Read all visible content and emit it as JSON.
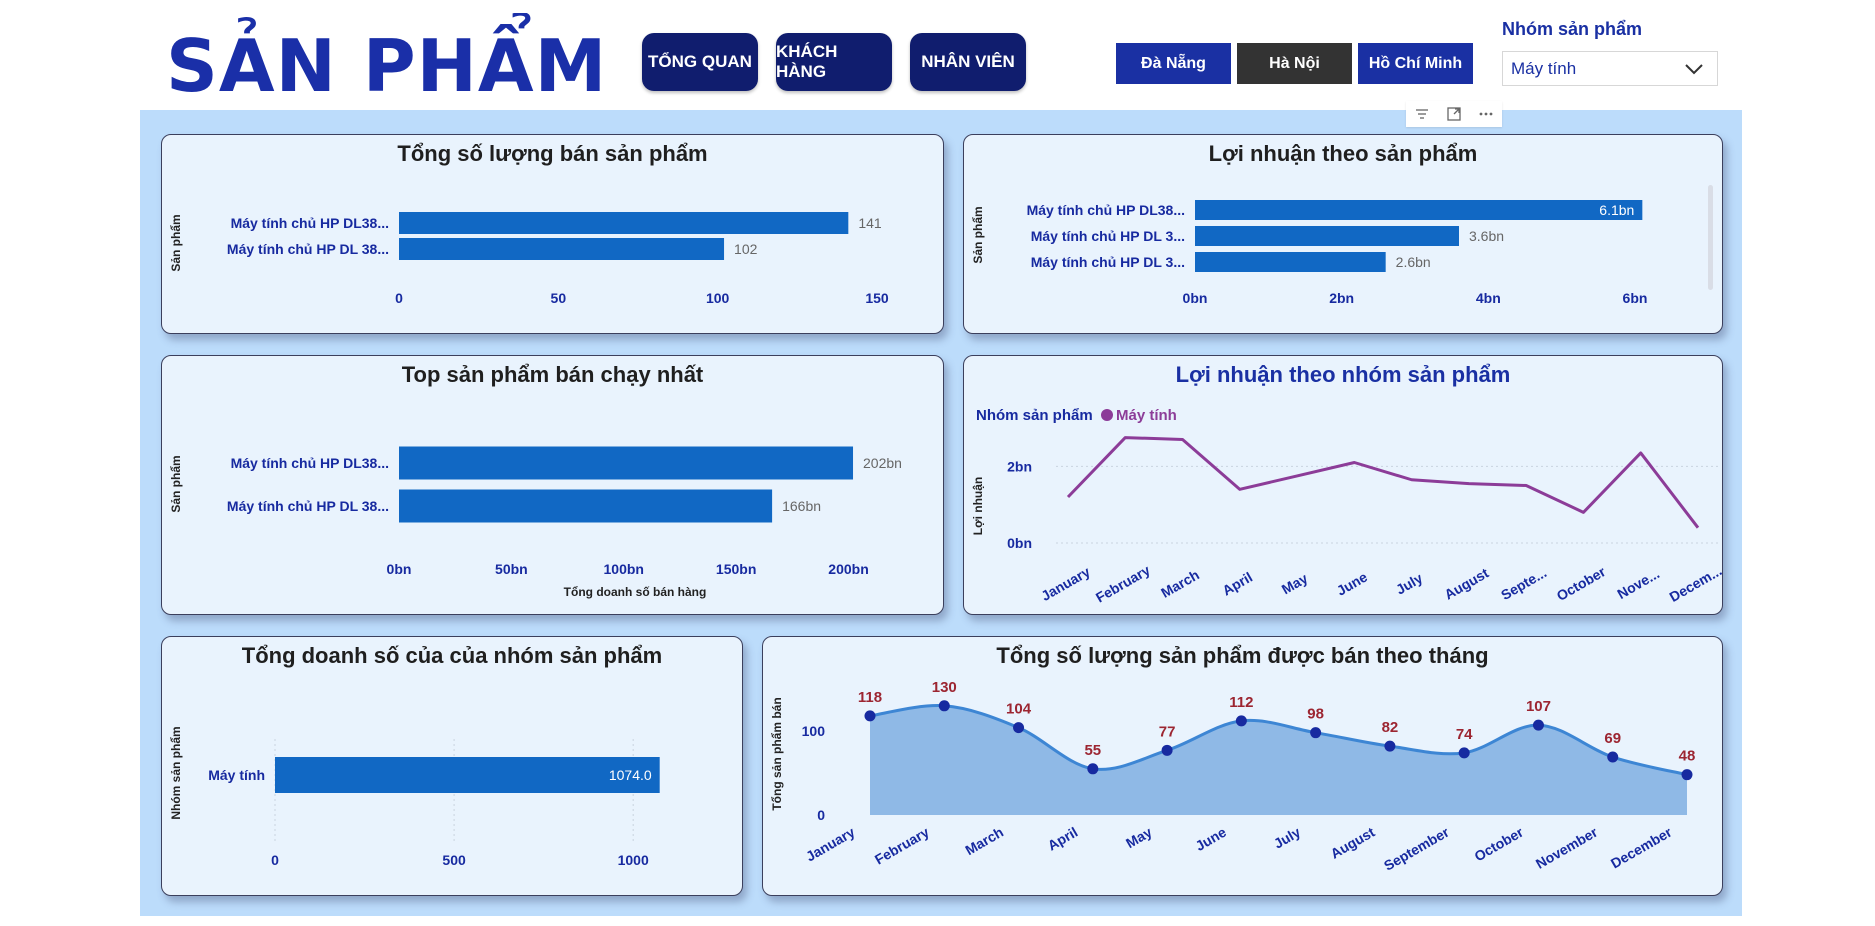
{
  "header": {
    "title": "SẢN PHẨM",
    "nav": [
      "TỔNG QUAN",
      "KHÁCH HÀNG",
      "NHÂN VIÊN"
    ],
    "cities": [
      "Đà Nẵng",
      "Hà Nội",
      "Hồ Chí Minh"
    ],
    "active_city": "Hà Nội",
    "slicer_label": "Nhóm sản phẩm",
    "slicer_value": "Máy tính"
  },
  "colors": {
    "bar": "#1168c4",
    "line": "#8c3c98",
    "area": "#8fb9e6",
    "area_line": "#3d86d4",
    "dot": "#172aa0",
    "point_label": "#9c2531",
    "nav_bg": "#101d6e",
    "axis_text": "#172aa0"
  },
  "chart_data": [
    {
      "id": "c1",
      "type": "bar",
      "orientation": "horizontal",
      "title": "Tổng số lượng bán sản phẩm",
      "ylabel": "Sản phẩm",
      "xlabel": "",
      "categories": [
        "Máy tính chủ HP DL38...",
        "Máy tính chủ HP DL 38..."
      ],
      "values": [
        141,
        102
      ],
      "value_labels": [
        "141",
        "102"
      ],
      "xlim": [
        0,
        150
      ],
      "ticks": [
        0,
        50,
        100,
        150
      ],
      "tick_labels": [
        "0",
        "50",
        "100",
        "150"
      ]
    },
    {
      "id": "c2",
      "type": "bar",
      "orientation": "horizontal",
      "title": "Lợi nhuận theo sản phẩm",
      "ylabel": "Sản phẩm",
      "xlabel": "",
      "categories": [
        "Máy tính chủ HP DL38...",
        "Máy tính chủ HP DL 3...",
        "Máy tính chủ HP DL 3..."
      ],
      "values": [
        6.1,
        3.6,
        2.6
      ],
      "value_labels": [
        "6.1bn",
        "3.6bn",
        "2.6bn"
      ],
      "xlim": [
        0,
        6.3
      ],
      "ticks": [
        0,
        2,
        4,
        6
      ],
      "tick_labels": [
        "0bn",
        "2bn",
        "4bn",
        "6bn"
      ]
    },
    {
      "id": "c3",
      "type": "bar",
      "orientation": "horizontal",
      "title": "Top sản phẩm bán chạy nhất",
      "ylabel": "Sản phẩm",
      "xlabel": "Tổng doanh số bán hàng",
      "categories": [
        "Máy tính chủ HP DL38...",
        "Máy tính chủ HP DL 38..."
      ],
      "values": [
        202,
        166
      ],
      "value_labels": [
        "202bn",
        "166bn"
      ],
      "xlim": [
        0,
        210
      ],
      "ticks": [
        0,
        50,
        100,
        150,
        200
      ],
      "tick_labels": [
        "0bn",
        "50bn",
        "100bn",
        "150bn",
        "200bn"
      ]
    },
    {
      "id": "c4",
      "type": "line",
      "title": "Lợi nhuận theo nhóm sản phẩm",
      "ylabel": "Lợi nhuận",
      "legend_title": "Nhóm sản phẩm",
      "legend_position": "top-left",
      "x": [
        "January",
        "February",
        "March",
        "April",
        "May",
        "June",
        "July",
        "August",
        "Septe...",
        "October",
        "Nove...",
        "Decem..."
      ],
      "series": [
        {
          "name": "Máy tính",
          "values": [
            1.2,
            2.75,
            2.7,
            1.4,
            1.75,
            2.1,
            1.65,
            1.55,
            1.5,
            0.8,
            2.35,
            0.4
          ]
        }
      ],
      "ylim": [
        0,
        3
      ],
      "ticks": [
        0,
        2
      ],
      "tick_labels": [
        "0bn",
        "2bn"
      ],
      "grid": true
    },
    {
      "id": "c5",
      "type": "bar",
      "orientation": "horizontal",
      "title": "Tổng doanh số của của nhóm sản phẩm",
      "ylabel": "Nhóm sản phẩm",
      "xlabel": "",
      "categories": [
        "Máy tính"
      ],
      "values": [
        1074.0
      ],
      "value_labels": [
        "1074.0"
      ],
      "xlim": [
        0,
        1100
      ],
      "ticks": [
        0,
        500,
        1000
      ],
      "tick_labels": [
        "0",
        "500",
        "1000"
      ],
      "grid": true
    },
    {
      "id": "c6",
      "type": "area",
      "title": "Tổng số lượng sản phẩm được bán theo tháng",
      "ylabel": "Tổng sản phẩm bán",
      "x": [
        "January",
        "February",
        "March",
        "April",
        "May",
        "June",
        "July",
        "August",
        "September",
        "October",
        "November",
        "December"
      ],
      "values": [
        118,
        130,
        104,
        55,
        77,
        112,
        98,
        82,
        74,
        107,
        69,
        48
      ],
      "ylim": [
        0,
        150
      ],
      "ticks": [
        0,
        100
      ],
      "tick_labels": [
        "0",
        "100"
      ]
    }
  ]
}
